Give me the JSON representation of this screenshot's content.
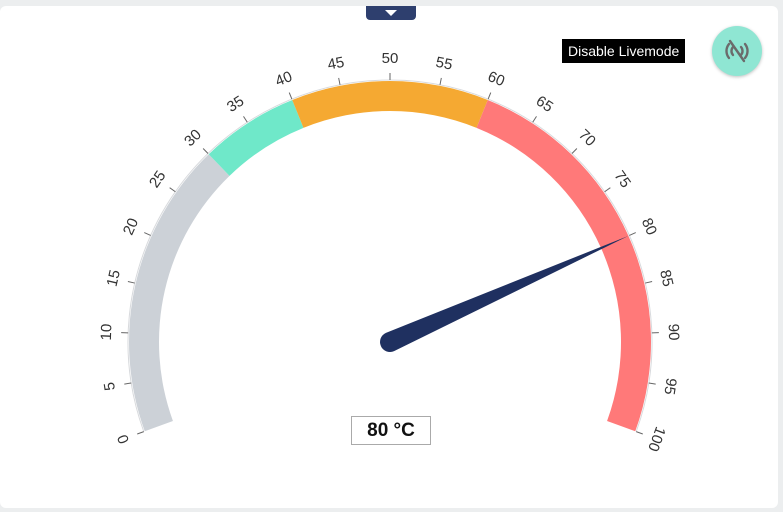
{
  "tooltip": "Disable Livemode",
  "live_button_icon": "wifi-off-icon",
  "expand_tab_icon": "chevron-down-icon",
  "gauge": {
    "min": 0,
    "max": 100,
    "value": 80,
    "unit": "°C",
    "value_label": "80 °C",
    "ticks": [
      0,
      5,
      10,
      15,
      20,
      25,
      30,
      35,
      40,
      45,
      50,
      55,
      60,
      65,
      70,
      75,
      80,
      85,
      90,
      95,
      100
    ],
    "bands": [
      {
        "from": 0,
        "to": 30,
        "color": "#ccd1d7"
      },
      {
        "from": 30,
        "to": 40,
        "color": "#6fe8c9"
      },
      {
        "from": 40,
        "to": 60,
        "color": "#f5a932"
      },
      {
        "from": 60,
        "to": 100,
        "color": "#ff7979"
      }
    ],
    "needle_color": "#1f3060"
  }
}
